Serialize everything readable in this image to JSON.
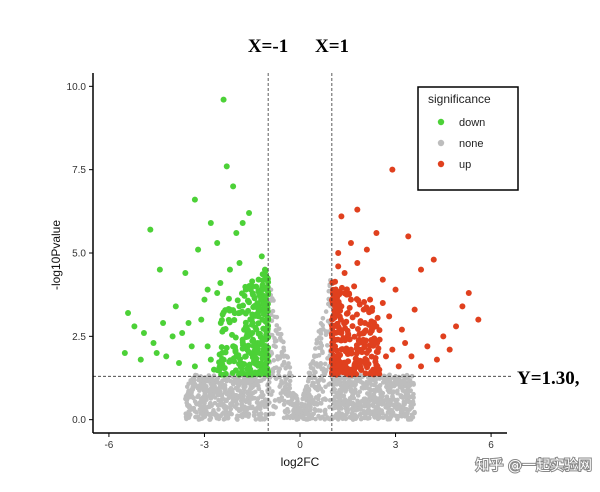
{
  "chart_data": {
    "type": "scatter",
    "title": "",
    "xlabel": "log2FC",
    "ylabel": "-log10Pvalue",
    "xlim": [
      -6.5,
      6.5
    ],
    "ylim": [
      -0.4,
      10.4
    ],
    "x_ticks": [
      -6,
      -3,
      0,
      3,
      6
    ],
    "y_ticks": [
      0.0,
      2.5,
      5.0,
      7.5,
      10.0
    ],
    "x_tick_labels": [
      "-6",
      "-3",
      "0",
      "3",
      "6"
    ],
    "y_tick_labels": [
      "0.0",
      "2.5",
      "5.0",
      "7.5",
      "10.0"
    ],
    "thresholds": {
      "x": [
        -1,
        1
      ],
      "y": 1.3
    },
    "annotations": {
      "x_neg": "X=-1",
      "x_pos": "X=1",
      "y": "Y=1.30,"
    },
    "legend": {
      "title": "significance",
      "position": "top-right",
      "entries": [
        {
          "label": "down",
          "color": "#4cd137"
        },
        {
          "label": "none",
          "color": "#bdbdbd"
        },
        {
          "label": "up",
          "color": "#e0401e"
        }
      ]
    },
    "series": [
      {
        "name": "down",
        "color": "#4cd137",
        "points": [
          [
            -2.4,
            9.6
          ],
          [
            -2.3,
            7.6
          ],
          [
            -2.1,
            7.0
          ],
          [
            -1.6,
            6.2
          ],
          [
            -3.3,
            6.6
          ],
          [
            -4.7,
            5.7
          ],
          [
            -2.8,
            5.9
          ],
          [
            -2.0,
            5.6
          ],
          [
            -1.8,
            5.9
          ],
          [
            -2.6,
            5.3
          ],
          [
            -3.2,
            5.1
          ],
          [
            -4.4,
            4.5
          ],
          [
            -3.6,
            4.4
          ],
          [
            -5.4,
            3.2
          ],
          [
            -5.2,
            2.8
          ],
          [
            -4.9,
            2.6
          ],
          [
            -5.5,
            2.0
          ],
          [
            -4.6,
            2.3
          ],
          [
            -4.2,
            1.9
          ],
          [
            -4.0,
            2.5
          ],
          [
            -3.8,
            1.7
          ],
          [
            -3.5,
            2.9
          ],
          [
            -3.0,
            3.6
          ],
          [
            -2.9,
            2.2
          ],
          [
            -2.5,
            4.1
          ],
          [
            -2.2,
            3.3
          ],
          [
            -1.9,
            4.7
          ],
          [
            -1.7,
            3.9
          ],
          [
            -1.5,
            2.6
          ],
          [
            -1.3,
            3.1
          ],
          [
            -1.2,
            4.9
          ],
          [
            -1.1,
            2.0
          ],
          [
            -1.4,
            1.8
          ],
          [
            -1.6,
            1.6
          ],
          [
            -2.0,
            1.9
          ],
          [
            -2.7,
            1.5
          ],
          [
            -3.1,
            3.0
          ],
          [
            -3.4,
            2.2
          ],
          [
            -3.9,
            3.4
          ],
          [
            -4.3,
            2.9
          ],
          [
            -5.0,
            1.8
          ],
          [
            -2.2,
            4.5
          ],
          [
            -1.3,
            4.2
          ],
          [
            -1.8,
            2.4
          ],
          [
            -2.4,
            2.7
          ],
          [
            -1.1,
            3.6
          ],
          [
            -1.2,
            1.5
          ],
          [
            -1.5,
            4.0
          ],
          [
            -2.6,
            3.8
          ],
          [
            -3.3,
            1.6
          ],
          [
            -1.9,
            3.2
          ],
          [
            -1.4,
            2.3
          ],
          [
            -1.2,
            3.9
          ],
          [
            -1.7,
            1.9
          ],
          [
            -2.9,
            3.9
          ],
          [
            -3.7,
            2.6
          ],
          [
            -4.5,
            2.0
          ],
          [
            -1.1,
            4.5
          ],
          [
            -2.1,
            2.2
          ],
          [
            -2.8,
            1.8
          ]
        ]
      },
      {
        "name": "up",
        "color": "#e0401e",
        "points": [
          [
            2.9,
            7.5
          ],
          [
            1.3,
            6.1
          ],
          [
            1.8,
            6.3
          ],
          [
            2.4,
            5.6
          ],
          [
            1.6,
            5.3
          ],
          [
            3.4,
            5.5
          ],
          [
            2.1,
            5.1
          ],
          [
            1.2,
            5.0
          ],
          [
            3.8,
            4.5
          ],
          [
            4.2,
            4.8
          ],
          [
            2.6,
            4.2
          ],
          [
            1.4,
            4.4
          ],
          [
            3.0,
            3.9
          ],
          [
            3.6,
            3.3
          ],
          [
            5.3,
            3.8
          ],
          [
            5.1,
            3.4
          ],
          [
            5.6,
            3.0
          ],
          [
            4.9,
            2.8
          ],
          [
            4.5,
            2.5
          ],
          [
            4.0,
            2.2
          ],
          [
            3.5,
            1.9
          ],
          [
            3.2,
            2.7
          ],
          [
            2.8,
            3.1
          ],
          [
            2.5,
            2.4
          ],
          [
            2.2,
            3.6
          ],
          [
            1.9,
            2.9
          ],
          [
            1.7,
            4.0
          ],
          [
            1.5,
            3.2
          ],
          [
            1.3,
            2.6
          ],
          [
            1.1,
            3.8
          ],
          [
            1.2,
            1.8
          ],
          [
            1.4,
            1.6
          ],
          [
            1.6,
            2.1
          ],
          [
            1.9,
            1.7
          ],
          [
            2.3,
            1.5
          ],
          [
            2.7,
            1.9
          ],
          [
            3.1,
            1.6
          ],
          [
            3.3,
            2.3
          ],
          [
            1.2,
            4.6
          ],
          [
            1.8,
            4.7
          ],
          [
            2.0,
            3.3
          ],
          [
            1.5,
            2.5
          ],
          [
            2.4,
            2.8
          ],
          [
            1.1,
            2.2
          ],
          [
            1.3,
            3.4
          ],
          [
            2.9,
            2.1
          ],
          [
            4.3,
            1.8
          ],
          [
            3.8,
            1.6
          ],
          [
            1.7,
            1.5
          ],
          [
            2.1,
            2.0
          ],
          [
            1.2,
            1.4
          ],
          [
            2.6,
            3.5
          ],
          [
            1.6,
            3.6
          ],
          [
            4.7,
            2.1
          ]
        ]
      }
    ]
  },
  "watermark": "知乎 @一起实验网"
}
